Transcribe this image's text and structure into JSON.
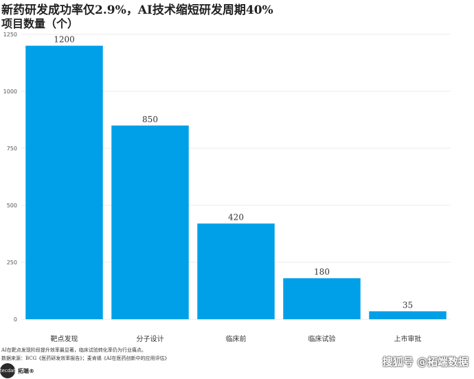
{
  "chart_data": {
    "type": "bar",
    "title": "新药研发成功率仅2.9%，AI技术缩短研发周期40%",
    "subtitle": "项目数量（个）",
    "categories": [
      "靶点发现",
      "分子设计",
      "临床前",
      "临床试验",
      "上市审批"
    ],
    "values": [
      1200,
      850,
      420,
      180,
      35
    ],
    "ylim": [
      0,
      1250
    ],
    "yticks": [
      0,
      250,
      500,
      750,
      1000,
      1250
    ],
    "grid": true,
    "bar_color": "#00a0e9"
  },
  "footnotes": [
    "AI在靶点发现阶段提升效率最显著，临床试验转化率仍为行业痛点。",
    "数据来源：BCG《医药研发效率报告》；麦肯锡《AI在医药创新中的应用评估》"
  ],
  "brand": {
    "logo_text": "tecdat",
    "name": "拓端®"
  },
  "watermark": "搜狐号 @拓端数据"
}
